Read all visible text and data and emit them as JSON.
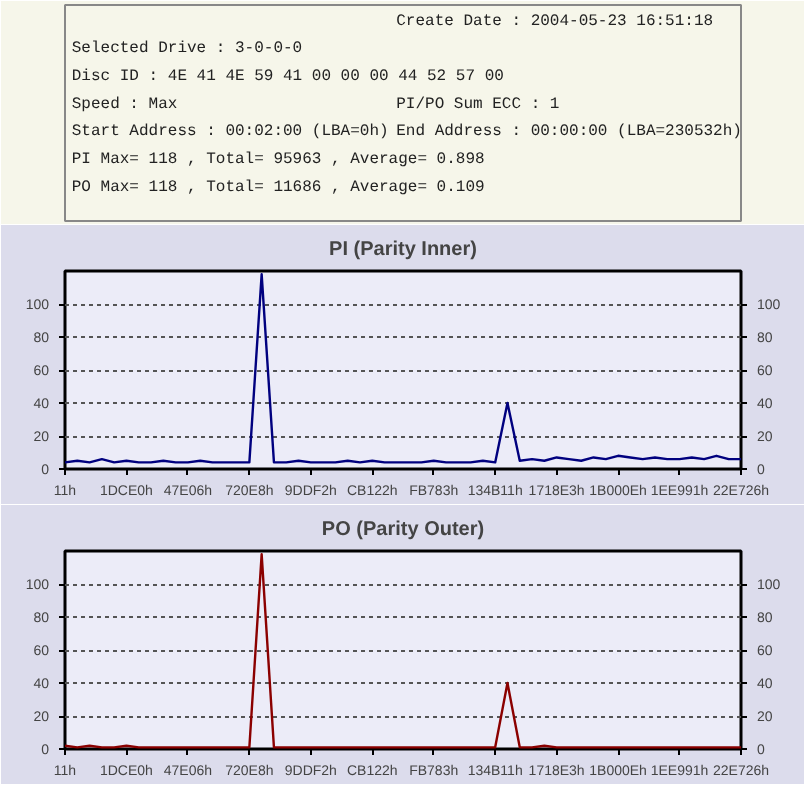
{
  "chart_data": [
    {
      "type": "other",
      "annotations": [
        "Create Date : 2004-05-23 16:51:18",
        "Selected Drive : 3-0-0-0",
        "Disc ID : 4E 41 4E 59 41 00 00 00 44 52 57 00",
        "Speed : Max",
        "PI/PO Sum ECC : 1",
        "Start Address : 00:02:00 (LBA=0h)",
        "End Address : 00:00:00 (LBA=230532h)",
        "PI Max= 118 , Total= 95963 , Average= 0.898",
        "PO Max= 118 , Total= 11686 , Average= 0.109"
      ]
    },
    {
      "type": "line",
      "title": "PI (Parity Inner)",
      "grid": "y",
      "categories": [
        "11h",
        null,
        null,
        null,
        null,
        "1DCE0h",
        null,
        null,
        null,
        null,
        "47E06h",
        null,
        null,
        null,
        null,
        "720E8h",
        null,
        null,
        null,
        null,
        "9DDF2h",
        null,
        null,
        null,
        null,
        "CB122h",
        null,
        null,
        null,
        null,
        "FB783h",
        null,
        null,
        null,
        null,
        "134B11h",
        null,
        null,
        null,
        null,
        "1718E3h",
        null,
        null,
        null,
        null,
        "1B000Eh",
        null,
        null,
        null,
        null,
        "1EE991h",
        null,
        null,
        null,
        null,
        "22E726h"
      ],
      "ylim": [
        0,
        120
      ],
      "yticks": [
        0,
        20,
        40,
        60,
        80,
        100
      ],
      "y2lim": [
        0,
        120
      ],
      "y2ticks": [
        0,
        20,
        40,
        60,
        80,
        100
      ],
      "series": [
        {
          "color": "#00007f",
          "values": [
            4,
            5,
            4,
            6,
            4,
            5,
            4,
            4,
            5,
            4,
            4,
            5,
            4,
            4,
            4,
            4,
            118,
            4,
            4,
            5,
            4,
            4,
            4,
            5,
            4,
            5,
            4,
            4,
            4,
            4,
            5,
            4,
            4,
            4,
            5,
            4,
            40,
            5,
            6,
            5,
            7,
            6,
            5,
            7,
            6,
            8,
            7,
            6,
            7,
            6,
            6,
            7,
            6,
            8,
            6,
            6
          ]
        }
      ]
    },
    {
      "type": "line",
      "title": "PO (Parity Outer)",
      "grid": "y",
      "categories": [
        "11h",
        null,
        null,
        null,
        null,
        "1DCE0h",
        null,
        null,
        null,
        null,
        "47E06h",
        null,
        null,
        null,
        null,
        "720E8h",
        null,
        null,
        null,
        null,
        "9DDF2h",
        null,
        null,
        null,
        null,
        "CB122h",
        null,
        null,
        null,
        null,
        "FB783h",
        null,
        null,
        null,
        null,
        "134B11h",
        null,
        null,
        null,
        null,
        "1718E3h",
        null,
        null,
        null,
        null,
        "1B000Eh",
        null,
        null,
        null,
        null,
        "1EE991h",
        null,
        null,
        null,
        null,
        "22E726h"
      ],
      "ylim": [
        0,
        120
      ],
      "yticks": [
        0,
        20,
        40,
        60,
        80,
        100
      ],
      "y2lim": [
        0,
        120
      ],
      "y2ticks": [
        0,
        20,
        40,
        60,
        80,
        100
      ],
      "series": [
        {
          "color": "#8b0000",
          "values": [
            2,
            1,
            2,
            1,
            1,
            2,
            1,
            1,
            1,
            1,
            1,
            1,
            1,
            1,
            1,
            1,
            118,
            1,
            1,
            1,
            1,
            1,
            1,
            1,
            1,
            1,
            1,
            1,
            1,
            1,
            1,
            1,
            1,
            1,
            1,
            1,
            40,
            1,
            1,
            2,
            1,
            1,
            1,
            1,
            1,
            1,
            1,
            1,
            1,
            1,
            1,
            1,
            1,
            1,
            1,
            1
          ]
        }
      ]
    }
  ]
}
